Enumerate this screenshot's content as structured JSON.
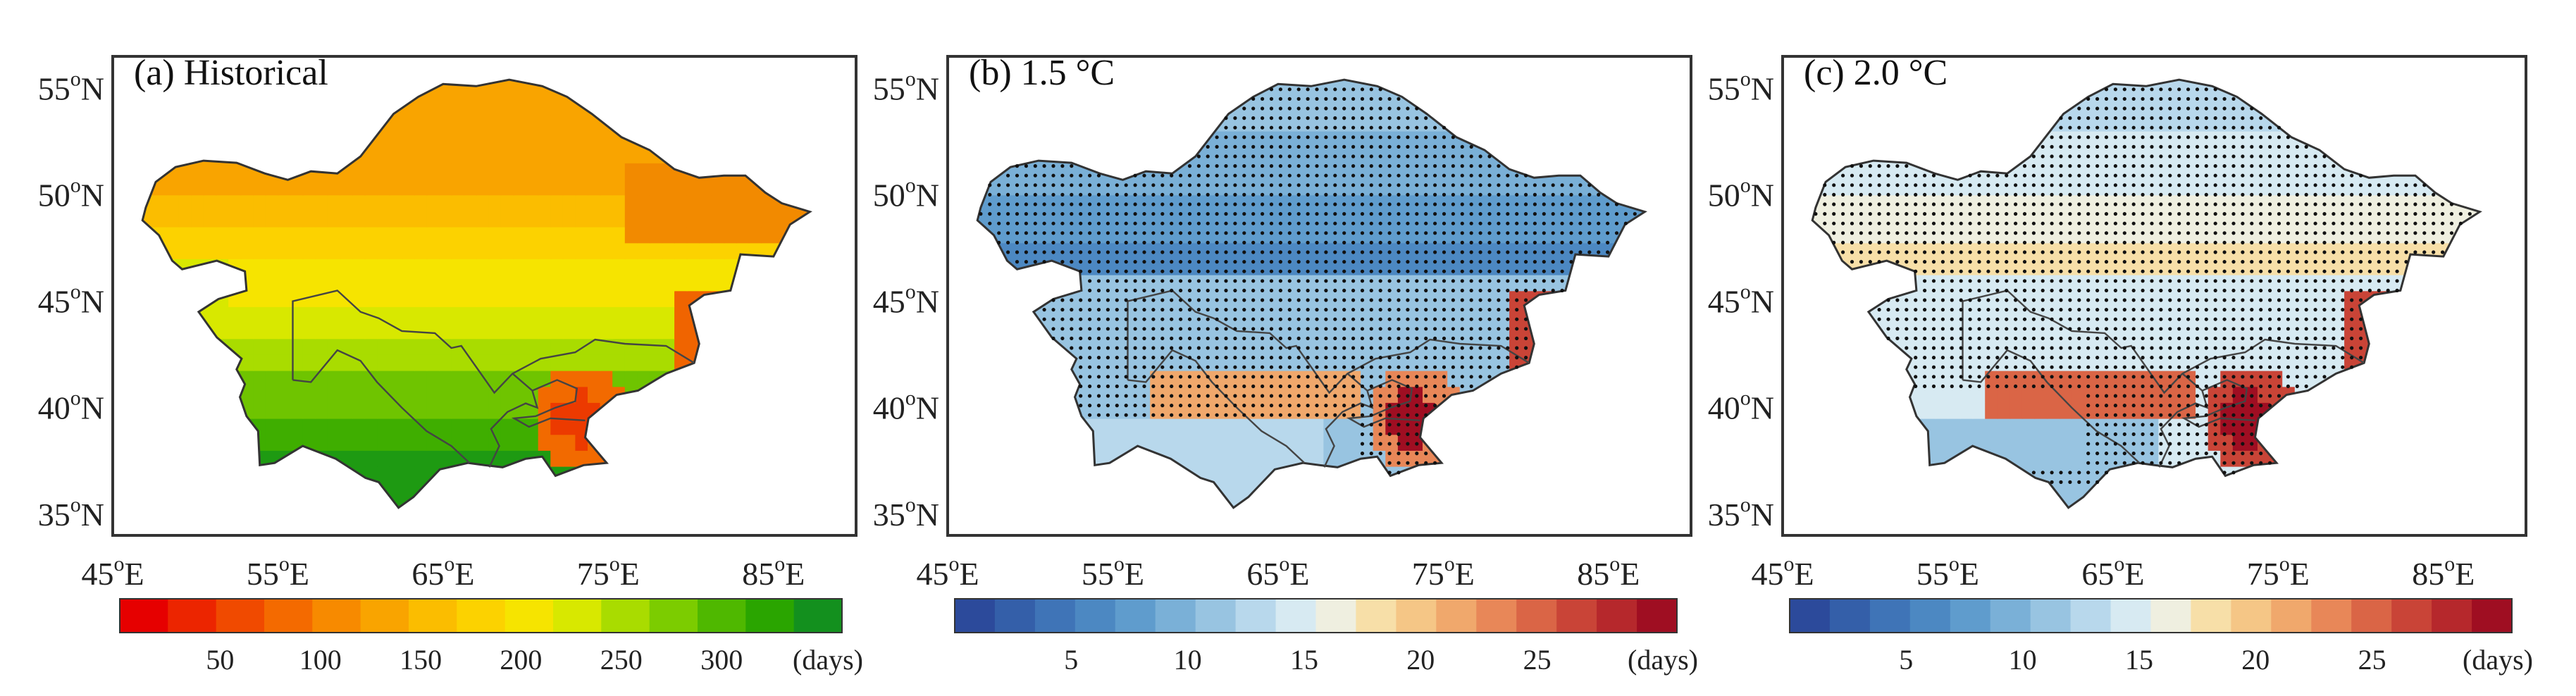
{
  "panels": [
    {
      "id": "a",
      "title": "(a) Historical",
      "colorbar": {
        "colors": [
          "#e60000",
          "#ec2500",
          "#f04a00",
          "#f46a00",
          "#f78a00",
          "#f9a400",
          "#fbbd00",
          "#fcd200",
          "#f6e400",
          "#d8e800",
          "#a9dc00",
          "#7ccc00",
          "#4fb800",
          "#2aa500",
          "#13901e"
        ],
        "ticks": [
          "50",
          "100",
          "150",
          "200",
          "250",
          "300"
        ],
        "unit": "(days)",
        "dots": false
      }
    },
    {
      "id": "b",
      "title": "(b) 1.5 °C",
      "colorbar": {
        "colors": [
          "#2c4a9b",
          "#345fa9",
          "#3f74b7",
          "#4c88c2",
          "#5f9ccd",
          "#7ab0d7",
          "#98c4e1",
          "#b8d8ec",
          "#d7eaf2",
          "#efefe0",
          "#f7dfa8",
          "#f5c686",
          "#f0a86c",
          "#e88758",
          "#da6546",
          "#c94437",
          "#b6282c",
          "#9f0e22"
        ],
        "ticks": [
          "5",
          "10",
          "15",
          "20",
          "25"
        ],
        "unit": "(days)",
        "dots": true
      }
    },
    {
      "id": "c",
      "title": "(c) 2.0 °C",
      "colorbar": {
        "colors": [
          "#2c4a9b",
          "#345fa9",
          "#3f74b7",
          "#4c88c2",
          "#5f9ccd",
          "#7ab0d7",
          "#98c4e1",
          "#b8d8ec",
          "#d7eaf2",
          "#efefe0",
          "#f7dfa8",
          "#f5c686",
          "#f0a86c",
          "#e88758",
          "#da6546",
          "#c94437",
          "#b6282c",
          "#9f0e22"
        ],
        "ticks": [
          "5",
          "10",
          "15",
          "20",
          "25"
        ],
        "unit": "(days)",
        "dots": true
      }
    }
  ],
  "lat_labels": [
    "55",
    "50",
    "45",
    "40",
    "35"
  ],
  "lat_suffix": "N",
  "lon_labels": [
    "45",
    "55",
    "65",
    "75",
    "85"
  ],
  "lon_suffix": "E",
  "degree_mark": "o"
}
